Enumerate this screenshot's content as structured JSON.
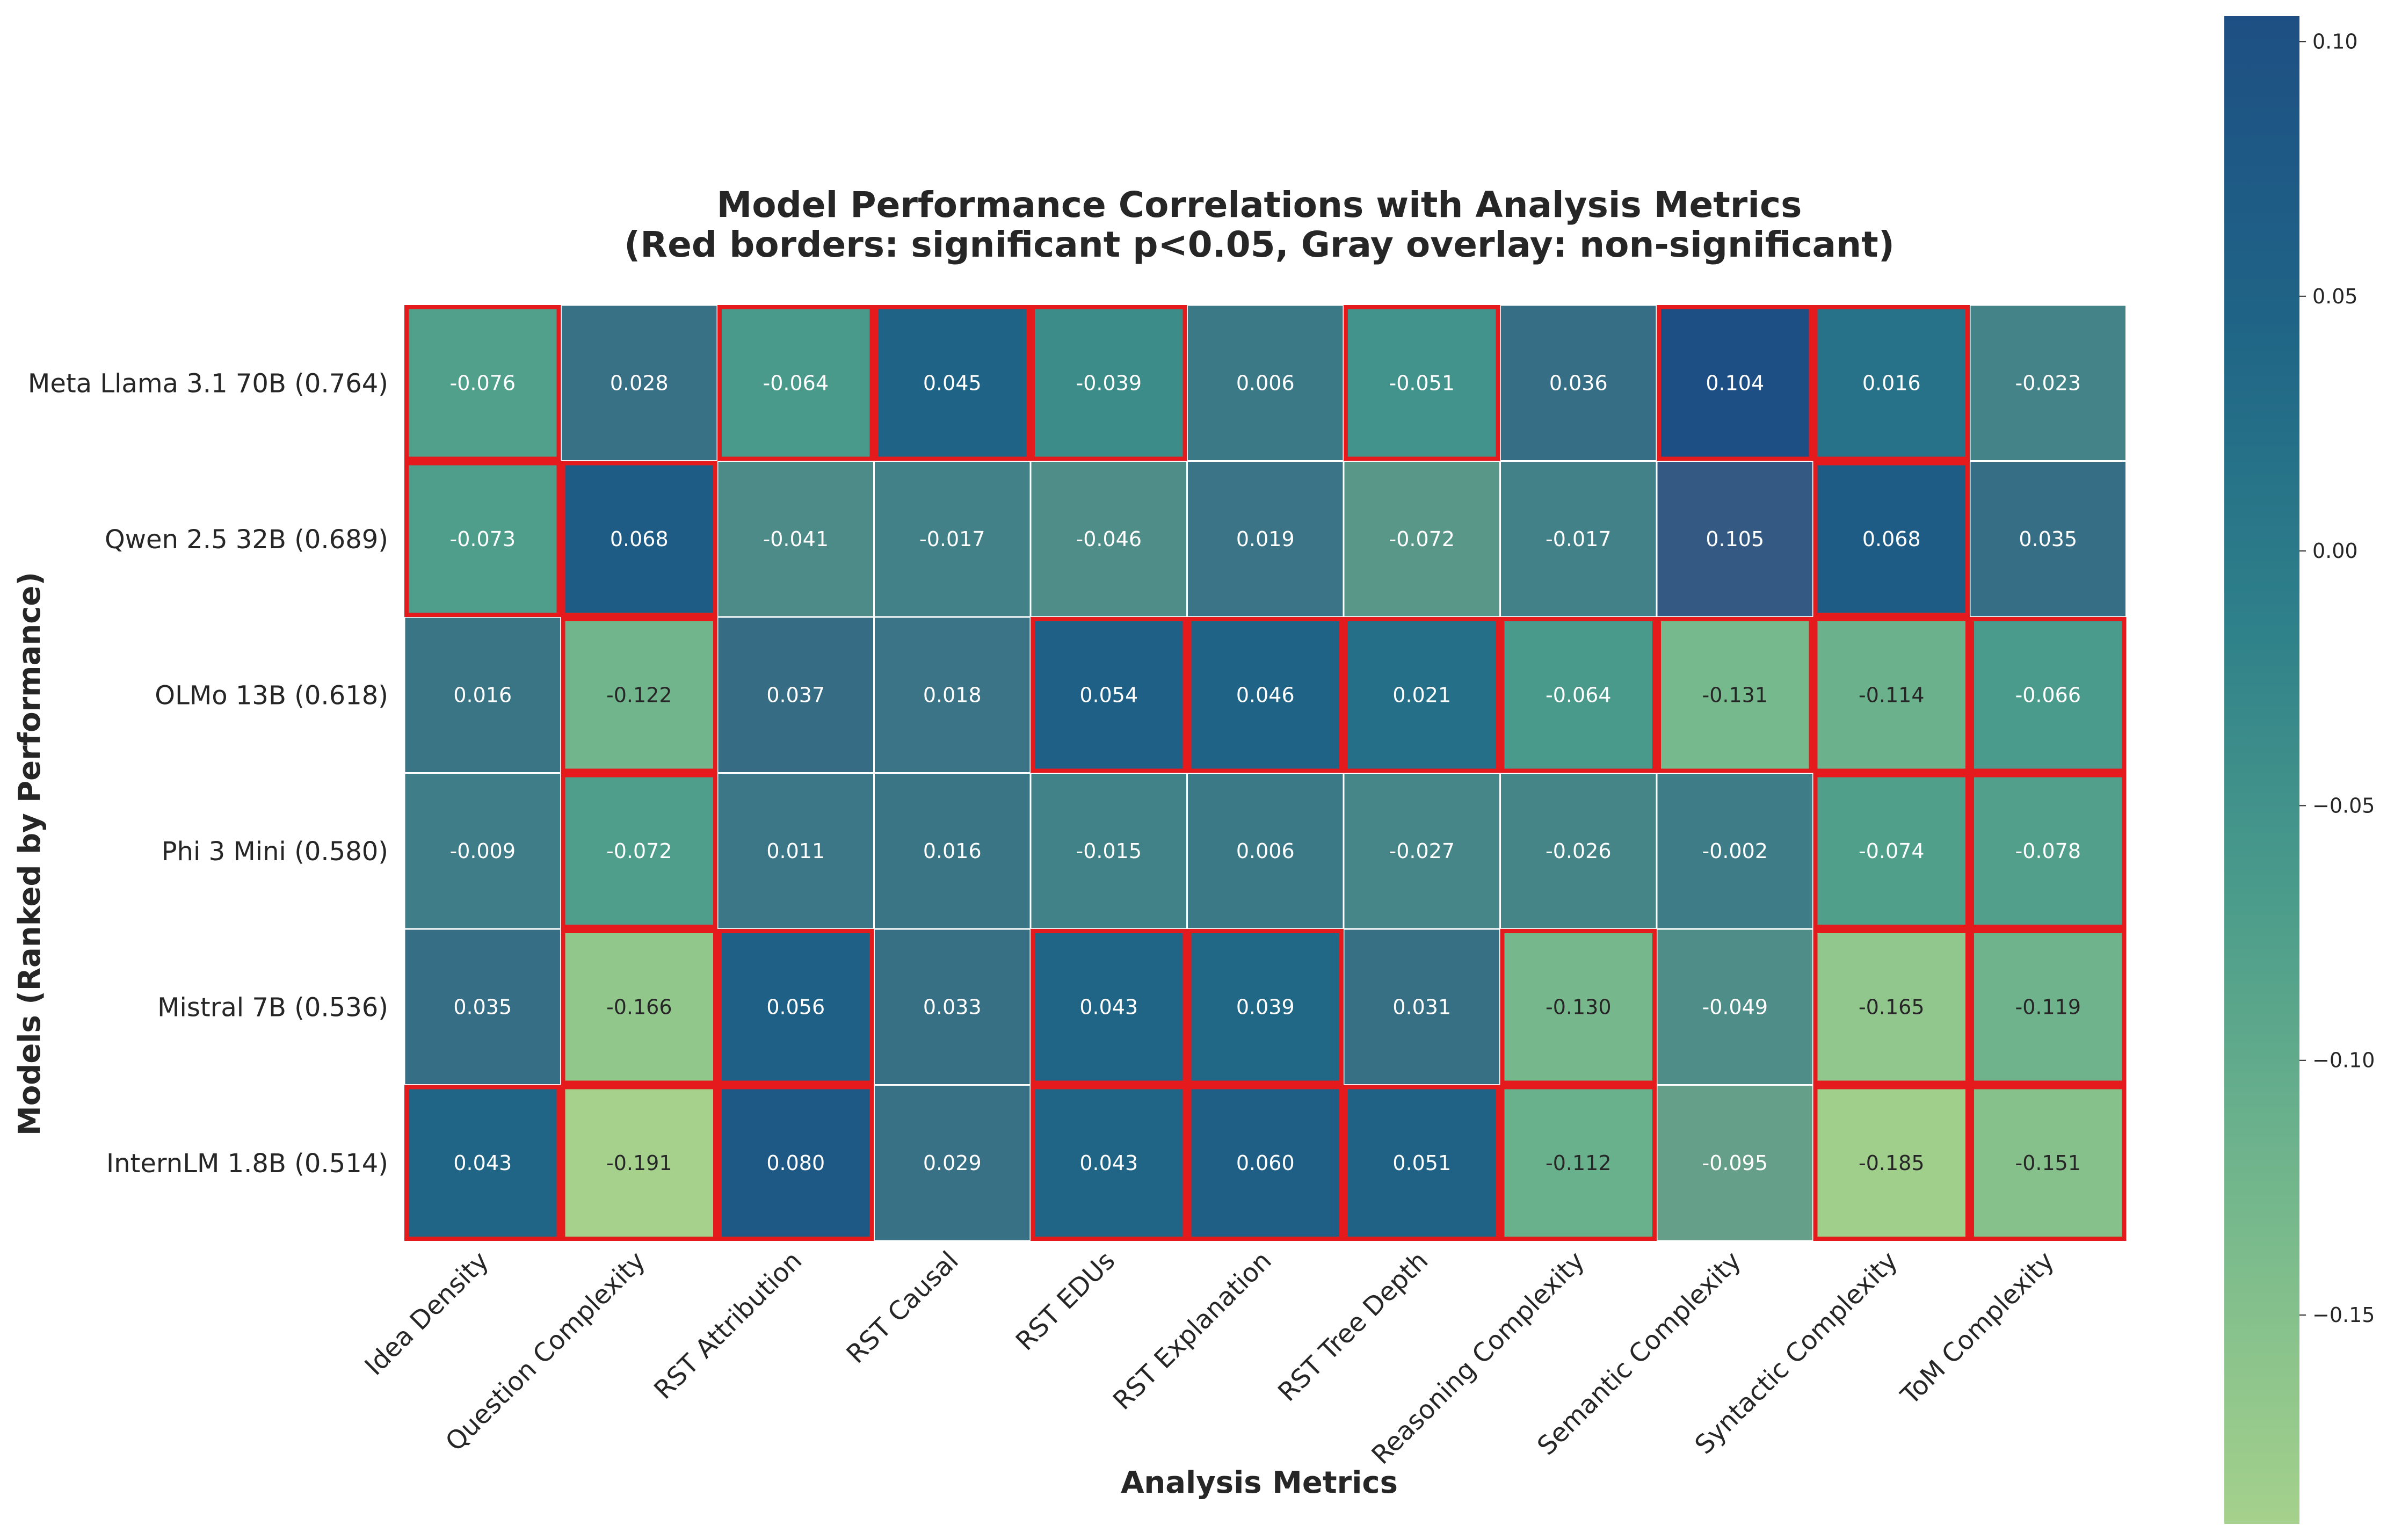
{
  "chart_data": {
    "type": "heatmap",
    "title": "Model Performance Correlations with Analysis Metrics",
    "subtitle": "(Red borders: significant p<0.05, Gray overlay: non-significant)",
    "xlabel": "Analysis Metrics",
    "ylabel": "Models (Ranked by Performance)",
    "columns": [
      "Idea Density",
      "Question Complexity",
      "RST Attribution",
      "RST Causal",
      "RST EDUs",
      "RST Explanation",
      "RST Tree Depth",
      "Reasoning Complexity",
      "Semantic Complexity",
      "Syntactic Complexity",
      "ToM Complexity"
    ],
    "rows": [
      "Meta Llama 3.1 70B (0.764)",
      "Qwen 2.5 32B (0.689)",
      "OLMo 13B (0.618)",
      "Phi 3 Mini (0.580)",
      "Mistral 7B (0.536)",
      "InternLM 1.8B (0.514)"
    ],
    "values": [
      [
        -0.076,
        0.028,
        -0.064,
        0.045,
        -0.039,
        0.006,
        -0.051,
        0.036,
        0.104,
        0.016,
        -0.023
      ],
      [
        -0.073,
        0.068,
        -0.041,
        -0.017,
        -0.046,
        0.019,
        -0.072,
        -0.017,
        0.105,
        0.068,
        0.035
      ],
      [
        0.016,
        -0.122,
        0.037,
        0.018,
        0.054,
        0.046,
        0.021,
        -0.064,
        -0.131,
        -0.114,
        -0.066
      ],
      [
        -0.009,
        -0.072,
        0.011,
        0.016,
        -0.015,
        0.006,
        -0.027,
        -0.026,
        -0.002,
        -0.074,
        -0.078
      ],
      [
        0.035,
        -0.166,
        0.056,
        0.033,
        0.043,
        0.039,
        0.031,
        -0.13,
        -0.049,
        -0.165,
        -0.119
      ],
      [
        0.043,
        -0.191,
        0.08,
        0.029,
        0.043,
        0.06,
        0.051,
        -0.112,
        -0.095,
        -0.185,
        -0.151
      ]
    ],
    "labels": [
      [
        "-0.076",
        "0.028",
        "-0.064",
        "0.045",
        "-0.039",
        "0.006",
        "-0.051",
        "0.036",
        "0.104",
        "0.016",
        "-0.023"
      ],
      [
        "-0.073",
        "0.068",
        "-0.041",
        "-0.017",
        "-0.046",
        "0.019",
        "-0.072",
        "-0.017",
        "0.105",
        "0.068",
        "0.035"
      ],
      [
        "0.016",
        "-0.122",
        "0.037",
        "0.018",
        "0.054",
        "0.046",
        "0.021",
        "-0.064",
        "-0.131",
        "-0.114",
        "-0.066"
      ],
      [
        "-0.009",
        "-0.072",
        "0.011",
        "0.016",
        "-0.015",
        "0.006",
        "-0.027",
        "-0.026",
        "-0.002",
        "-0.074",
        "-0.078"
      ],
      [
        "0.035",
        "-0.166",
        "0.056",
        "0.033",
        "0.043",
        "0.039",
        "0.031",
        "-0.130",
        "-0.049",
        "-0.165",
        "-0.119"
      ],
      [
        "0.043",
        "-0.191",
        "0.080",
        "0.029",
        "0.043",
        "0.060",
        "0.051",
        "-0.112",
        "-0.095",
        "-0.185",
        "-0.151"
      ]
    ],
    "significant": [
      [
        true,
        false,
        true,
        true,
        true,
        false,
        true,
        false,
        true,
        true,
        false
      ],
      [
        true,
        true,
        false,
        false,
        false,
        false,
        false,
        false,
        false,
        true,
        false
      ],
      [
        false,
        true,
        false,
        false,
        true,
        true,
        true,
        true,
        true,
        true,
        true
      ],
      [
        false,
        true,
        false,
        false,
        false,
        false,
        false,
        false,
        false,
        true,
        true
      ],
      [
        false,
        true,
        true,
        false,
        true,
        true,
        false,
        true,
        false,
        true,
        true
      ],
      [
        true,
        true,
        true,
        false,
        true,
        true,
        true,
        true,
        false,
        true,
        true
      ]
    ],
    "colorbar": {
      "vmin": -0.191,
      "vmax": 0.105,
      "ticks": [
        0.1,
        0.05,
        0.0,
        -0.05,
        -0.1,
        -0.15
      ],
      "tick_labels": [
        "0.10",
        "0.05",
        "0.00",
        "−0.05",
        "−0.10",
        "−0.15"
      ],
      "colors": [
        "#a5d18c",
        "#77b98c",
        "#4e9e8b",
        "#2e808a",
        "#1f6486",
        "#1e4f84"
      ]
    },
    "significant_border_color": "#e41a1c",
    "nonsignificant_overlay_color": "#808080"
  }
}
